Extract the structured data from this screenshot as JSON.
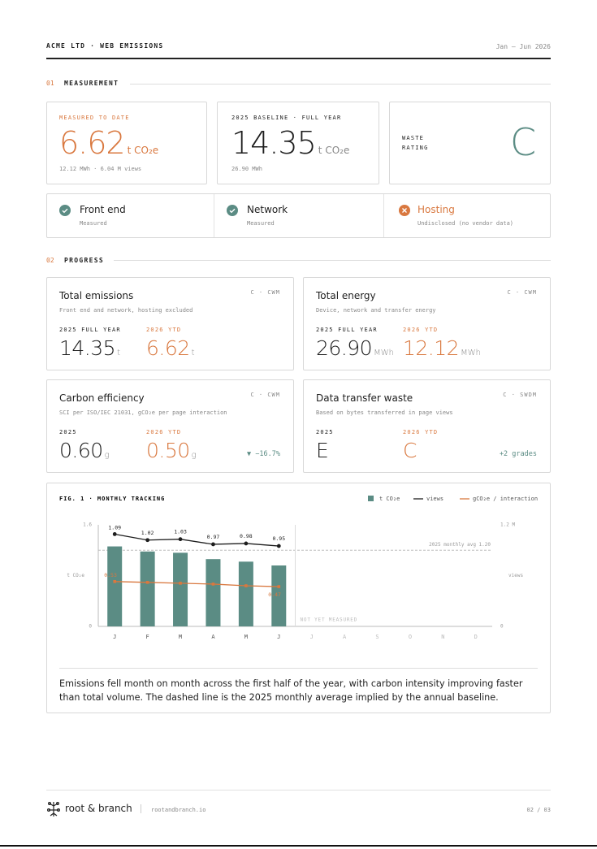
{
  "header": {
    "title": "ACME LTD · WEB EMISSIONS",
    "period": "Jan – Jun 2026"
  },
  "measurement": {
    "number": "01",
    "heading": "MEASUREMENT",
    "cards": [
      {
        "label": "MEASURED TO DATE",
        "value": "6.62",
        "unit": "t CO₂e",
        "note": "12.12 MWh · 6.04 M views"
      },
      {
        "label": "2025 BASELINE · FULL YEAR",
        "value": "14.35",
        "unit": "t CO₂e",
        "note": "26.90 MWh"
      }
    ],
    "rating": {
      "label": "WASTE RATING",
      "grade": "C"
    },
    "scope": [
      {
        "name": "Front end",
        "status": "Measured"
      },
      {
        "name": "Network",
        "status": "Measured"
      },
      {
        "name": "Hosting",
        "status": "Undisclosed (no vendor data)"
      }
    ]
  },
  "progress": {
    "number": "02",
    "heading": "PROGRESS",
    "cards": [
      {
        "title": "Total emissions",
        "tag": "C · CWM",
        "desc": "Front end and network, hosting excluded",
        "cols": [
          {
            "label": "2025 FULL YEAR",
            "value": "14.35",
            "unit": "t"
          },
          {
            "label": "2026 YTD",
            "value": "6.62",
            "unit": "t"
          }
        ]
      },
      {
        "title": "Total energy",
        "tag": "C · CWM",
        "desc": "Device, network and transfer energy",
        "cols": [
          {
            "label": "2025 FULL YEAR",
            "value": "26.90",
            "unit": "MWh"
          },
          {
            "label": "2026 YTD",
            "value": "12.12",
            "unit": "MWh"
          }
        ]
      },
      {
        "title": "Carbon efficiency",
        "tag": "C · CWM",
        "desc": "SCI per ISO/IEC 21031, gCO₂e per page interaction",
        "cols": [
          {
            "label": "2025",
            "value": "0.60",
            "unit": "g"
          },
          {
            "label": "2026 YTD",
            "value": "0.50",
            "unit": "g"
          }
        ],
        "change": "▼ −16.7%"
      },
      {
        "title": "Data transfer waste",
        "tag": "C · SWDM",
        "desc": "Based on bytes transferred in page views",
        "cols": [
          {
            "label": "2025",
            "value": "E"
          },
          {
            "label": "2026 YTD",
            "value": "C"
          }
        ],
        "change": "+2 grades"
      }
    ]
  },
  "chart_data": {
    "type": "combo",
    "title": "FIG. 1 · MONTHLY TRACKING",
    "categories": [
      "J",
      "F",
      "M",
      "A",
      "M",
      "J",
      "J",
      "A",
      "S",
      "O",
      "N",
      "D"
    ],
    "series": [
      {
        "name": "t CO₂e",
        "type": "bar",
        "color": "#5b8c84",
        "values": [
          1.26,
          1.18,
          1.16,
          1.06,
          1.02,
          0.96,
          null,
          null,
          null,
          null,
          null,
          null
        ]
      },
      {
        "name": "views",
        "type": "line",
        "axis": "y2",
        "color": "#1e1e1e",
        "values": [
          1.09,
          1.02,
          1.03,
          0.97,
          0.98,
          0.95,
          null,
          null,
          null,
          null,
          null,
          null
        ]
      },
      {
        "name": "gCO₂e / interaction",
        "type": "line",
        "axis": "y2",
        "color": "#d9783f",
        "values": [
          0.53,
          0.52,
          0.51,
          0.5,
          0.48,
          0.47,
          null,
          null,
          null,
          null,
          null,
          null
        ]
      }
    ],
    "y_label": "t CO₂e",
    "y2_label": "views",
    "ylim": [
      0,
      1.6
    ],
    "yticks": [
      0,
      1.6
    ],
    "y2lim": [
      0,
      1.2
    ],
    "y2ticks": [
      0,
      {
        "value": 1.2,
        "label": "1.2 M"
      }
    ],
    "reference": {
      "value": 1.2,
      "label": "2025 monthly avg 1.20"
    },
    "note": "NOT YET MEASURED"
  },
  "caption": "Emissions fell month on month across the first half of the year, with carbon intensity improving faster than total volume. The dashed line is the 2025 monthly average implied by the annual baseline.",
  "footer": {
    "brand": "root & branch",
    "url": "rootandbranch.io",
    "page": "02 / 03"
  }
}
